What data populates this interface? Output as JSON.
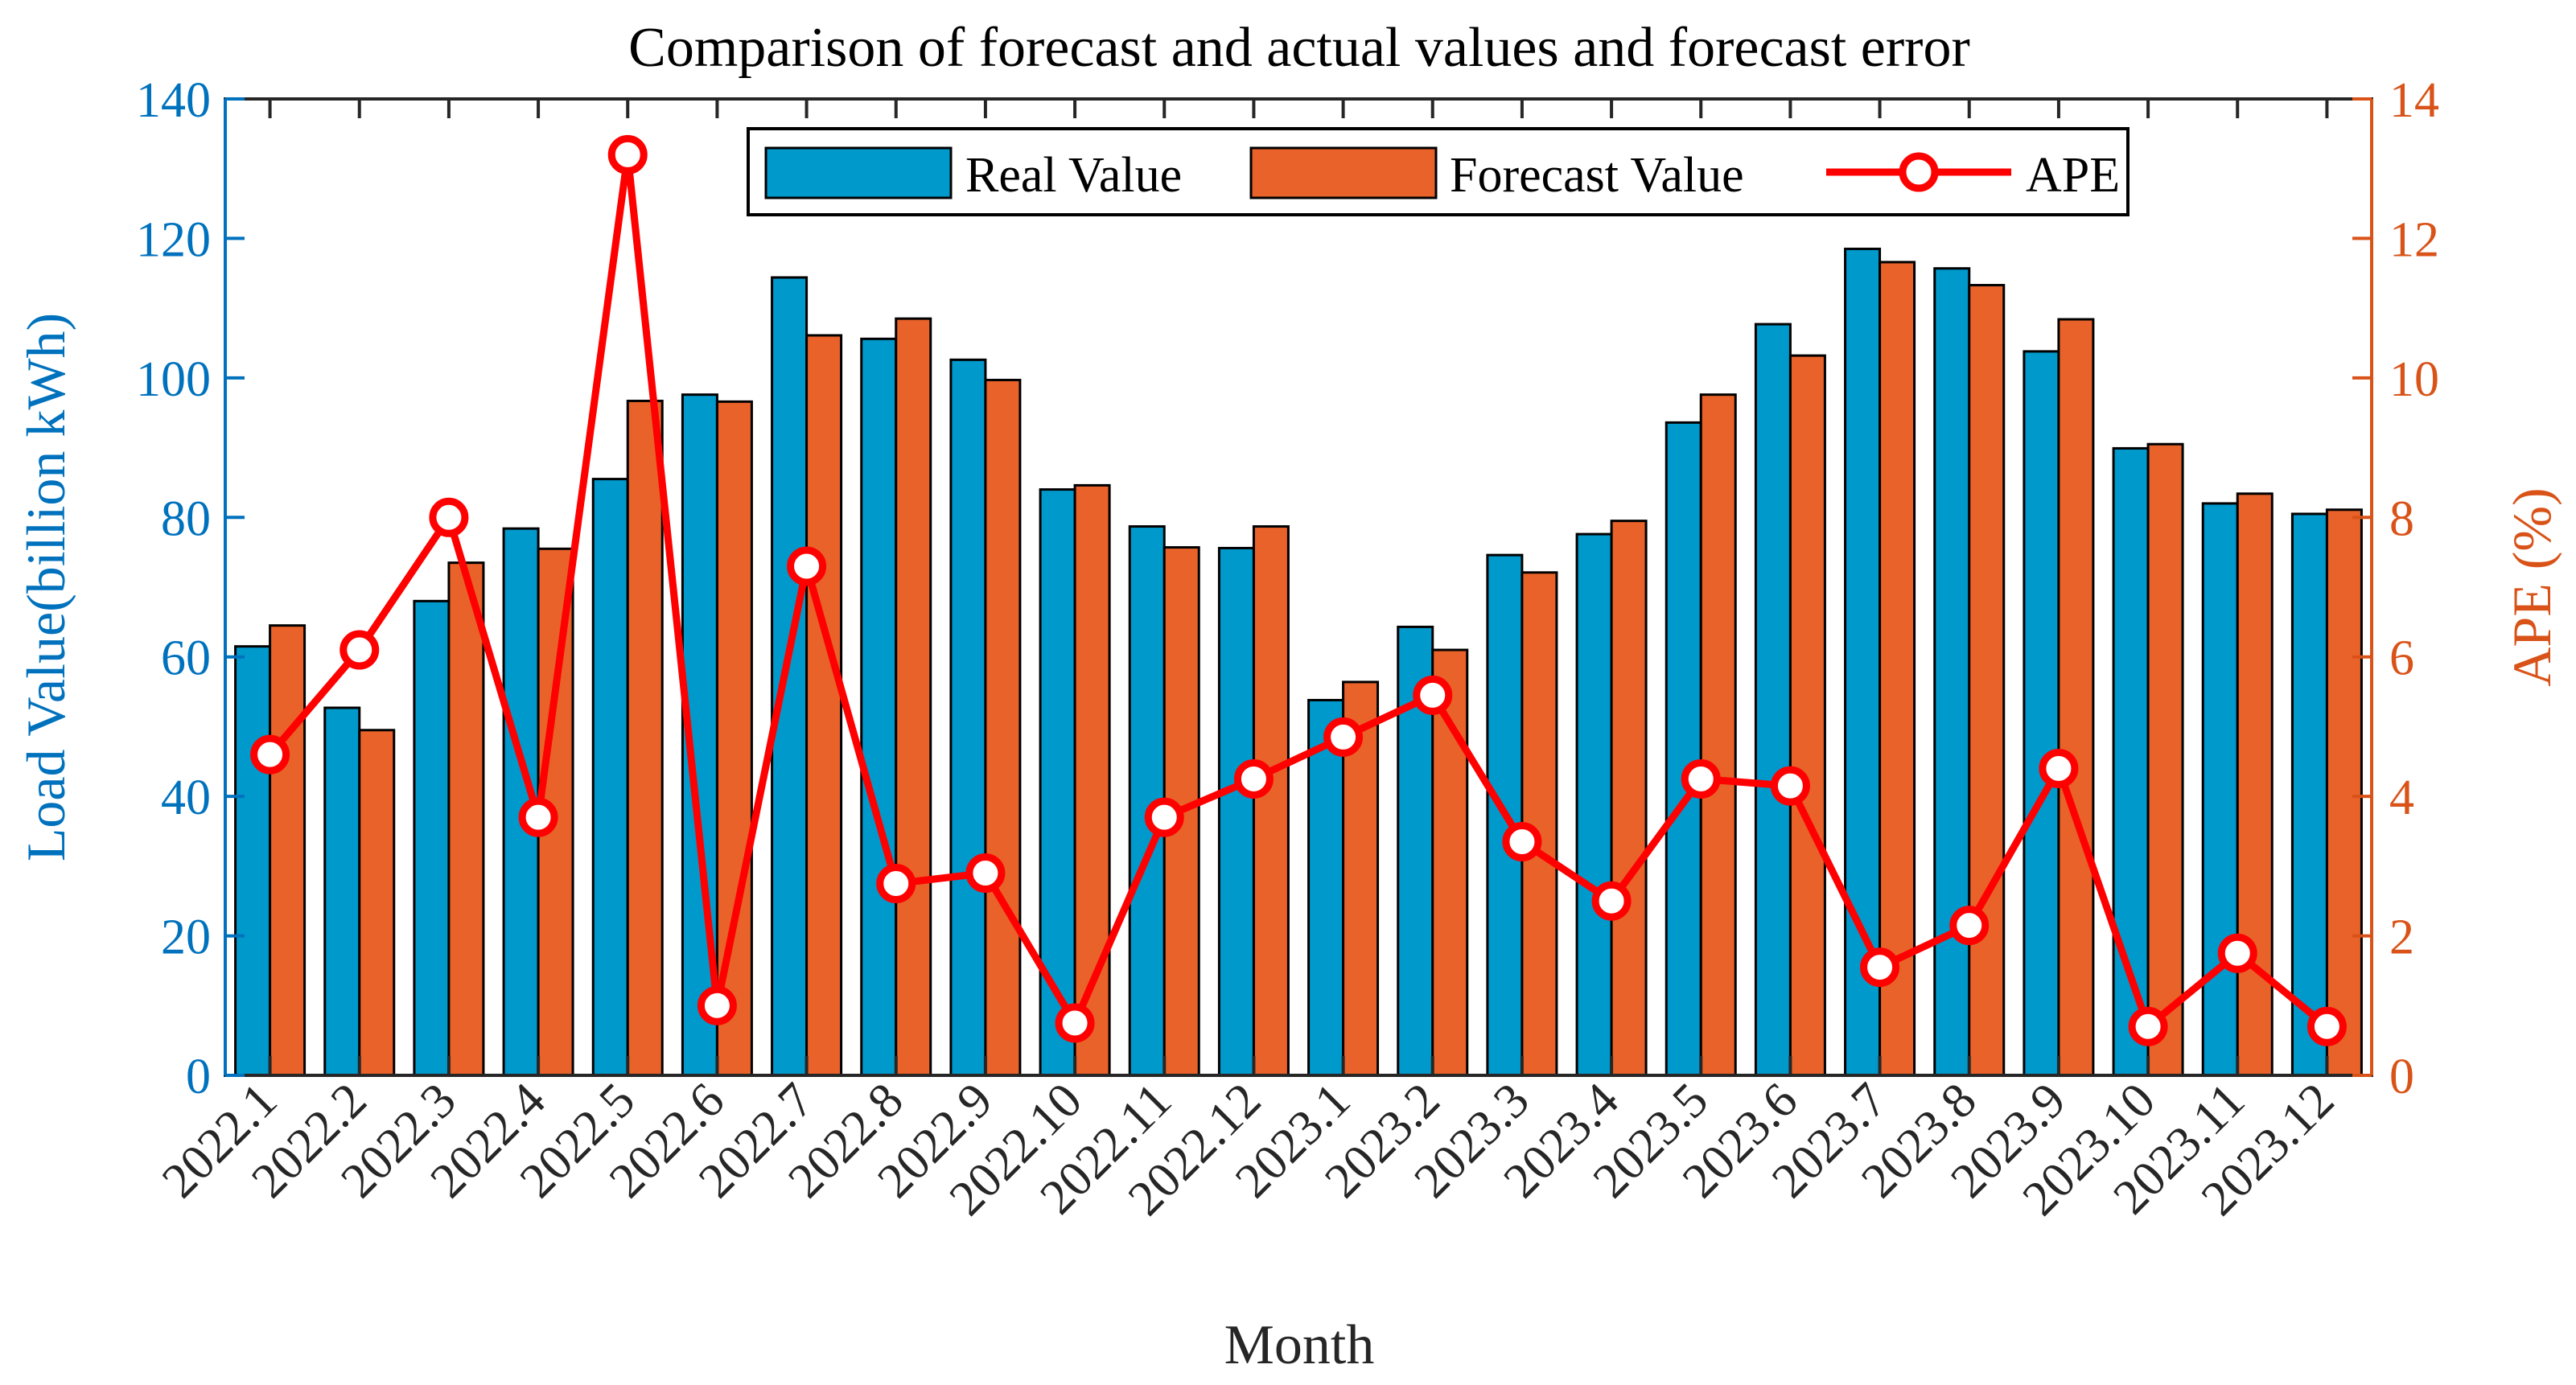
{
  "chart_data": {
    "type": "bar+line",
    "title": "Comparison of forecast and actual values and forecast error",
    "xlabel": "Month",
    "ylabel_left": "Load Value(billion kWh)",
    "ylabel_right": "APE (%)",
    "ylim_left": [
      0,
      140
    ],
    "ylim_right": [
      0,
      14
    ],
    "yticks_left": [
      "0",
      "20",
      "40",
      "60",
      "80",
      "100",
      "120",
      "140"
    ],
    "yticks_right": [
      "0",
      "2",
      "4",
      "6",
      "8",
      "10",
      "12",
      "14"
    ],
    "legend_position": "top",
    "categories": [
      "2022.1",
      "2022.2",
      "2022.3",
      "2022.4",
      "2022.5",
      "2022.6",
      "2022.7",
      "2022.8",
      "2022.9",
      "2022.10",
      "2022.11",
      "2022.12",
      "2023.1",
      "2023.2",
      "2023.3",
      "2023.4",
      "2023.5",
      "2023.6",
      "2023.7",
      "2023.8",
      "2023.9",
      "2023.10",
      "2023.11",
      "2023.12"
    ],
    "series": [
      {
        "name": "Real Value",
        "type": "bar",
        "axis": "left",
        "color": "#0099cc",
        "values": [
          61.5,
          52.7,
          68.0,
          78.4,
          85.5,
          97.6,
          114.4,
          105.6,
          102.6,
          84.0,
          78.7,
          75.6,
          53.8,
          64.3,
          74.6,
          77.6,
          93.6,
          107.7,
          118.5,
          115.7,
          103.8,
          89.9,
          82.0,
          80.5
        ]
      },
      {
        "name": "Forecast Value",
        "type": "bar",
        "axis": "left",
        "color": "#e8622a",
        "values": [
          64.5,
          49.5,
          73.5,
          75.5,
          96.7,
          96.6,
          106.1,
          108.5,
          99.7,
          84.6,
          75.7,
          78.7,
          56.4,
          61.0,
          72.1,
          79.5,
          97.6,
          103.2,
          116.6,
          113.3,
          108.4,
          90.5,
          83.4,
          81.1
        ]
      },
      {
        "name": "APE",
        "type": "line",
        "axis": "right",
        "color": "#ff0000",
        "values": [
          4.6,
          6.1,
          8.0,
          3.7,
          13.2,
          1.0,
          7.3,
          2.75,
          2.9,
          0.75,
          3.7,
          4.25,
          4.85,
          5.45,
          3.35,
          2.5,
          4.25,
          4.15,
          1.55,
          2.15,
          4.4,
          0.7,
          1.75,
          0.7
        ]
      }
    ],
    "colors": {
      "left_axis": "#0072bd",
      "right_axis": "#d95319",
      "real": "#0099cc",
      "forecast": "#e8622a",
      "ape": "#ff0000"
    }
  }
}
